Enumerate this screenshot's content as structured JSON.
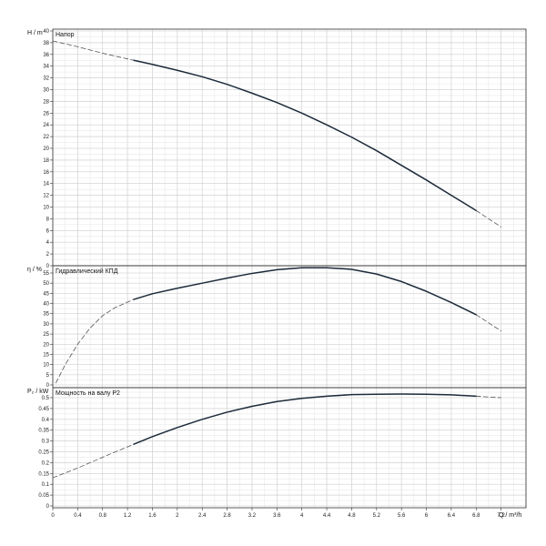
{
  "chart_data": [
    {
      "type": "line",
      "title": "Напор",
      "ylabel": "H / m",
      "ylim": [
        0,
        42
      ],
      "yticks": [
        0,
        2,
        4,
        6,
        8,
        10,
        12,
        14,
        16,
        18,
        20,
        22,
        24,
        26,
        28,
        30,
        32,
        34,
        36,
        38,
        40
      ],
      "xlim": [
        0,
        7.6
      ],
      "grid": true,
      "series": [
        {
          "style": "solid",
          "x": [
            1.3,
            1.6,
            2.0,
            2.4,
            2.8,
            3.2,
            3.6,
            4.0,
            4.4,
            4.8,
            5.2,
            5.6,
            6.0,
            6.4,
            6.8
          ],
          "y": [
            35.0,
            34.3,
            33.3,
            32.2,
            30.9,
            29.4,
            27.8,
            26.0,
            24.0,
            21.9,
            19.6,
            17.1,
            14.6,
            12.0,
            9.4
          ]
        },
        {
          "style": "dashed",
          "x": [
            0,
            0.4,
            0.8,
            1.3
          ],
          "y": [
            38.3,
            37.3,
            36.2,
            35.0
          ]
        },
        {
          "style": "dashed",
          "x": [
            6.8,
            7.0,
            7.2
          ],
          "y": [
            9.4,
            8.0,
            6.6
          ]
        }
      ]
    },
    {
      "type": "line",
      "title": "Гидравлический КПД",
      "ylabel": "η / %",
      "ylim": [
        0,
        60
      ],
      "yticks": [
        0,
        5,
        10,
        15,
        20,
        25,
        30,
        35,
        40,
        45,
        50,
        55
      ],
      "xlim": [
        0,
        7.6
      ],
      "grid": true,
      "series": [
        {
          "style": "solid",
          "x": [
            1.3,
            1.6,
            2.0,
            2.4,
            2.8,
            3.2,
            3.6,
            4.0,
            4.4,
            4.8,
            5.2,
            5.6,
            6.0,
            6.4,
            6.8
          ],
          "y": [
            42.0,
            44.8,
            47.5,
            50.0,
            52.5,
            54.8,
            56.6,
            57.6,
            57.6,
            56.8,
            54.5,
            50.8,
            46.0,
            40.5,
            34.5
          ]
        },
        {
          "style": "dashed",
          "x": [
            0.05,
            0.2,
            0.4,
            0.6,
            0.8,
            1.0,
            1.3
          ],
          "y": [
            1.0,
            10.0,
            20.0,
            28.0,
            34.0,
            38.0,
            42.0
          ]
        },
        {
          "style": "dashed",
          "x": [
            6.8,
            7.0,
            7.2
          ],
          "y": [
            34.5,
            30.5,
            26.5
          ]
        }
      ]
    },
    {
      "type": "line",
      "title": "Мощность на валу P2",
      "ylabel": "P₂ / kW",
      "xlabel": "Q / m³/h",
      "ylim": [
        0,
        0.57
      ],
      "yticks": [
        0,
        0.05,
        0.1,
        0.15,
        0.2,
        0.25,
        0.3,
        0.35,
        0.4,
        0.45,
        0.5
      ],
      "yticklabels": [
        "0",
        "0.05",
        "0.1",
        "0.15",
        "0.2",
        "0.25",
        "0.3",
        "0.35",
        "0.4",
        "0.45",
        "0.5"
      ],
      "xlim": [
        0,
        7.6
      ],
      "xticks": [
        0,
        0.4,
        0.8,
        1.2,
        1.6,
        2,
        2.4,
        2.8,
        3.2,
        3.6,
        4,
        4.4,
        4.8,
        5.2,
        5.6,
        6,
        6.4,
        6.8,
        7.2
      ],
      "xticklabels": [
        "0",
        "0.4",
        "0.8",
        "1.2",
        "1.6",
        "2",
        "2.4",
        "2.8",
        "3.2",
        "3.6",
        "4",
        "4.4",
        "4.8",
        "5.2",
        "5.6",
        "6",
        "6.4",
        "6.8",
        "7.2"
      ],
      "grid": true,
      "series": [
        {
          "style": "solid",
          "x": [
            1.3,
            1.6,
            2.0,
            2.4,
            2.8,
            3.2,
            3.6,
            4.0,
            4.4,
            4.8,
            5.2,
            5.6,
            6.0,
            6.4,
            6.8
          ],
          "y": [
            0.285,
            0.32,
            0.362,
            0.4,
            0.433,
            0.46,
            0.482,
            0.497,
            0.507,
            0.514,
            0.516,
            0.517,
            0.516,
            0.513,
            0.507
          ]
        },
        {
          "style": "dashed",
          "x": [
            0,
            0.4,
            0.8,
            1.3
          ],
          "y": [
            0.13,
            0.175,
            0.225,
            0.285
          ]
        },
        {
          "style": "dashed",
          "x": [
            6.8,
            7.0,
            7.2
          ],
          "y": [
            0.507,
            0.503,
            0.5
          ]
        }
      ]
    }
  ]
}
